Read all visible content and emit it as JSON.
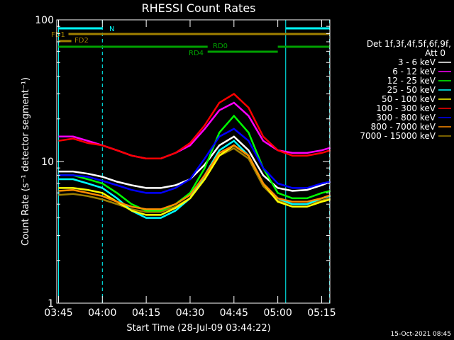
{
  "chart_data": {
    "type": "line",
    "title": "RHESSI Count Rates",
    "xlabel": "Start Time (28-Jul-09 03:44:22)",
    "ylabel": "Count Rate (s⁻¹ detector segment⁻¹)",
    "footer": "15-Oct-2021 08:45",
    "legend_title": [
      "Det 1f,3f,4f,5f,6f,9f,",
      "Att 0"
    ],
    "ylog": true,
    "xlim": [
      224.4,
      317.8
    ],
    "ylim": [
      1,
      100
    ],
    "yticks": [
      1,
      10,
      100
    ],
    "xticks": [
      {
        "value": 225,
        "label": "03:45"
      },
      {
        "value": 240,
        "label": "04:00"
      },
      {
        "value": 255,
        "label": "04:15"
      },
      {
        "value": 270,
        "label": "04:30"
      },
      {
        "value": 285,
        "label": "04:45"
      },
      {
        "value": 300,
        "label": "05:00"
      },
      {
        "value": 315,
        "label": "05:15"
      }
    ],
    "x": [
      225,
      230,
      235,
      240,
      245,
      250,
      255,
      260,
      265,
      270,
      275,
      280,
      285,
      290,
      295,
      300,
      305,
      310,
      315,
      318
    ],
    "series": [
      {
        "name": "7000 - 15000 keV",
        "color": "#a08000",
        "values": [
          5.8,
          5.9,
          5.7,
          5.4,
          5.0,
          4.6,
          4.4,
          4.4,
          4.8,
          5.5,
          7.6,
          11,
          12.4,
          10.5,
          6.7,
          5.3,
          5.0,
          5.0,
          5.3,
          5.5
        ]
      },
      {
        "name": "25 - 50 keV",
        "color": "#00ffff",
        "values": [
          7.5,
          7.5,
          7,
          6.5,
          5.5,
          4.5,
          4,
          4,
          4.5,
          5.5,
          8,
          12,
          14,
          11,
          7,
          5.5,
          5,
          5,
          5.5,
          5.7
        ]
      },
      {
        "name": "50 - 100 keV",
        "color": "#ffff00",
        "values": [
          6.5,
          6.5,
          6.3,
          6,
          5.2,
          4.5,
          4.2,
          4.2,
          4.7,
          5.5,
          7.5,
          11,
          13,
          11,
          7,
          5.2,
          4.8,
          4.8,
          5.2,
          5.4
        ]
      },
      {
        "name": "3 - 6 keV",
        "color": "#ffffff",
        "values": [
          8.5,
          8.5,
          8.2,
          7.8,
          7.2,
          6.8,
          6.5,
          6.5,
          6.8,
          7.5,
          9.5,
          13,
          15,
          12,
          8,
          6.5,
          6.2,
          6.3,
          6.8,
          7.2
        ]
      },
      {
        "name": "12 - 25 keV",
        "color": "#00ff00",
        "values": [
          8,
          8,
          7.5,
          7,
          6,
          5,
          4.5,
          4.5,
          5,
          6,
          9,
          16,
          21,
          16,
          9,
          6,
          5.5,
          5.5,
          6,
          6.2
        ]
      },
      {
        "name": "300 - 800 keV",
        "color": "#0000ff",
        "values": [
          8,
          8,
          7.8,
          7.3,
          6.8,
          6.3,
          6,
          6,
          6.5,
          7.5,
          10.5,
          15,
          17,
          14,
          9,
          7,
          6.5,
          6.5,
          7,
          7.2
        ]
      },
      {
        "name": "800 - 7000 keV",
        "color": "#ff8c00",
        "values": [
          6.2,
          6.3,
          6,
          5.7,
          5.2,
          4.8,
          4.6,
          4.6,
          5,
          5.8,
          8,
          11.5,
          13,
          11,
          7,
          5.5,
          5.2,
          5.2,
          5.5,
          5.8
        ]
      },
      {
        "name": "6 - 12 keV",
        "color": "#ff00ff",
        "values": [
          15,
          15,
          14,
          13,
          12,
          11,
          10.5,
          10.5,
          11.5,
          13,
          17,
          23,
          26,
          21,
          14,
          12,
          11.5,
          11.5,
          12,
          12.5
        ]
      },
      {
        "name": "100 - 300 keV",
        "color": "#ff0000",
        "values": [
          14,
          14.5,
          13.5,
          13,
          12,
          11,
          10.5,
          10.5,
          11.5,
          13.5,
          18,
          26,
          30,
          24,
          15,
          12,
          11,
          11,
          11.5,
          12
        ]
      }
    ],
    "legend_order": [
      3,
      7,
      4,
      1,
      2,
      8,
      5,
      6,
      0
    ],
    "bars": [
      {
        "label": "N",
        "color": "#00ffff",
        "segments": [
          [
            225,
            240
          ],
          [
            302.7,
            317.7
          ]
        ]
      },
      {
        "label": "FD1",
        "color": "#a08000",
        "segments": [
          [
            228.4,
            317.7
          ]
        ]
      },
      {
        "label": "FD2",
        "color": "#a08000",
        "segments": [
          [
            225,
            229.4
          ]
        ]
      },
      {
        "label": "RD0",
        "color": "#00a000",
        "segments": [
          [
            225,
            276
          ],
          [
            300,
            317.7
          ]
        ]
      },
      {
        "label": "RD4",
        "color": "#00a000",
        "segments": [
          [
            276,
            300
          ]
        ]
      }
    ],
    "vlines": [
      {
        "x": 225,
        "dashed": false,
        "color": "#00ffff"
      },
      {
        "x": 240,
        "dashed": true,
        "color": "#00ffff"
      },
      {
        "x": 302.7,
        "dashed": false,
        "color": "#00ffff"
      },
      {
        "x": 317.7,
        "dashed": true,
        "color": "#00ffff"
      }
    ]
  }
}
